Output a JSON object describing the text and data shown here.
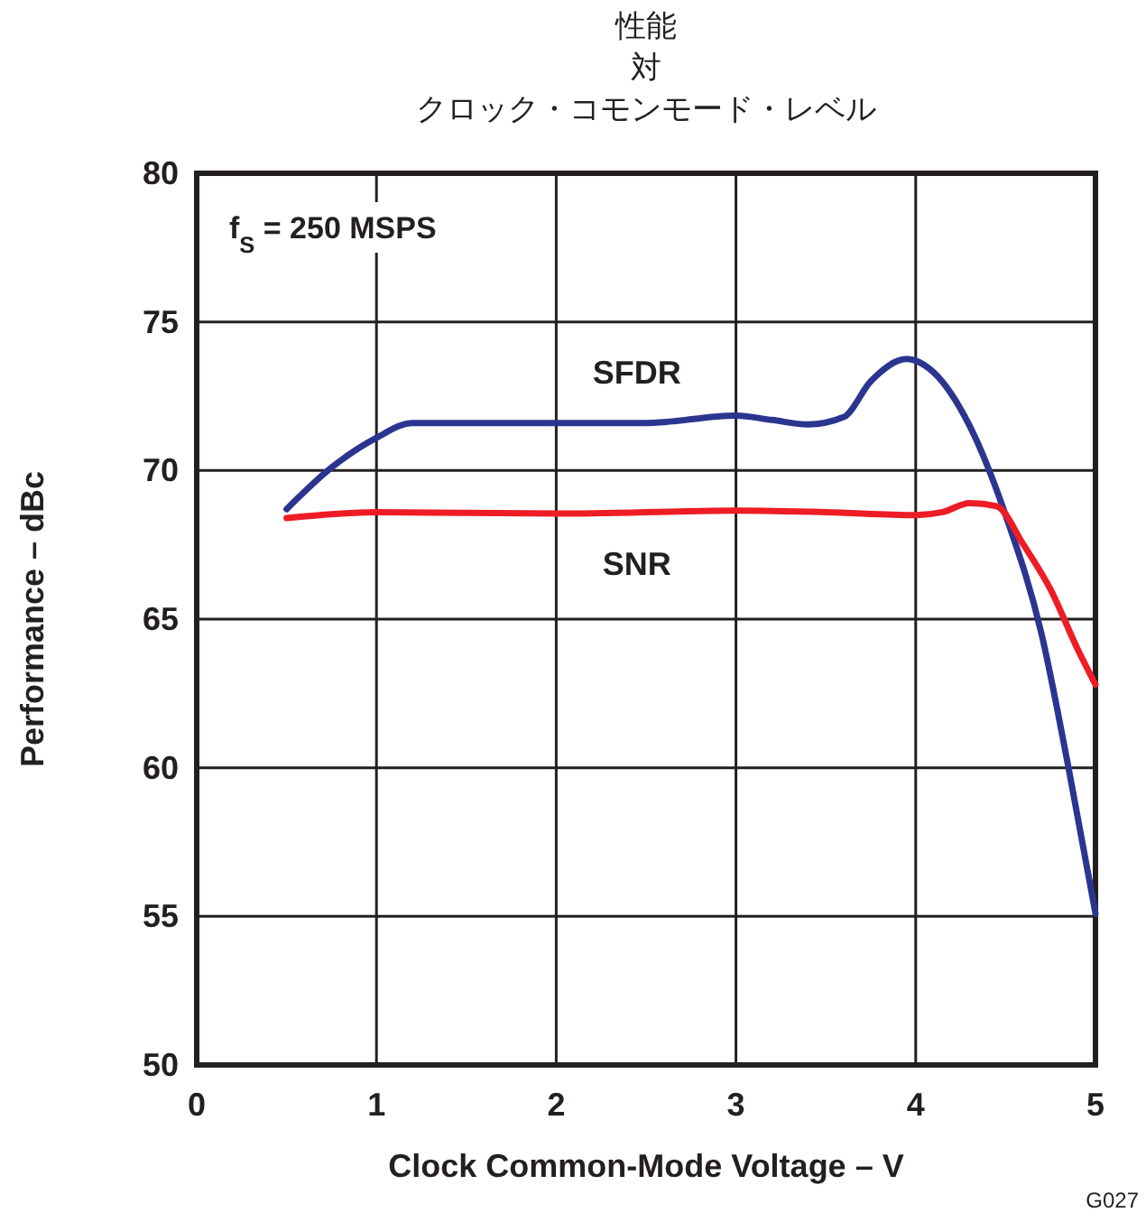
{
  "chart_data": {
    "type": "line",
    "title": "性能対クロック・コモンモード・レベル",
    "xlabel": "Clock Common-Mode Voltage – V",
    "ylabel": "Performance – dBc",
    "annotations": [
      "f$_{S}$ = 250 MSPS",
      "G027"
    ],
    "xlim": [
      0,
      5
    ],
    "xticks": [
      0,
      1,
      2,
      3,
      4,
      5
    ],
    "ylim": [
      50,
      80
    ],
    "yticks": [
      50,
      55,
      60,
      65,
      70,
      75,
      80
    ],
    "grid": true,
    "legend": false,
    "line_style": "solid",
    "marker": "none",
    "series": [
      {
        "name": "SFDR",
        "color": "#2b3590",
        "x": [
          0.5,
          0.75,
          1.0,
          1.2,
          1.5,
          2,
          2.5,
          3,
          3.2,
          3.4,
          3.6,
          3.75,
          3.95,
          4.1,
          4.3,
          4.5,
          4.7,
          4.85,
          5
        ],
        "values": [
          68.7,
          70.1,
          71.1,
          71.6,
          71.6,
          71.6,
          71.6,
          71.85,
          71.7,
          71.55,
          71.8,
          73.0,
          73.75,
          73.3,
          71.5,
          68.5,
          64.5,
          60.0,
          55.1
        ]
      },
      {
        "name": "SNR",
        "color": "#ee1c25",
        "x": [
          0.5,
          1.0,
          2.0,
          3.0,
          3.5,
          4.0,
          4.15,
          4.3,
          4.45,
          4.6,
          4.75,
          4.9,
          5
        ],
        "values": [
          68.4,
          68.6,
          68.55,
          68.65,
          68.6,
          68.5,
          68.6,
          68.9,
          68.8,
          67.5,
          66.0,
          64.0,
          62.8
        ]
      }
    ]
  }
}
